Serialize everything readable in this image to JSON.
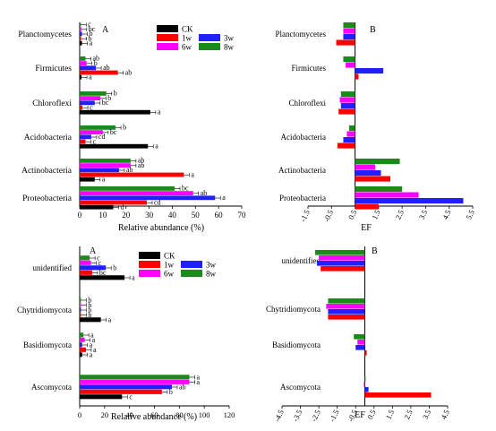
{
  "colors": {
    "CK": "#000000",
    "1w": "#ff0000",
    "3w": "#1f1fff",
    "6w": "#ff00ff",
    "8w": "#1a8a1a"
  },
  "chart_data": [
    {
      "panel": "A",
      "type": "bar",
      "orientation": "horizontal",
      "categories": [
        "Planctomycetes",
        "Firmicutes",
        "Chloroflexi",
        "Acidobacteria",
        "Actinobacteria",
        "Proteobacteria"
      ],
      "series": [
        {
          "name": "CK",
          "values": [
            1.0,
            0.8,
            30.5,
            29.5,
            6.5,
            14.5
          ],
          "labels": [
            "a",
            "a",
            "a",
            "a",
            "a",
            "d"
          ]
        },
        {
          "name": "1w",
          "values": [
            0.6,
            16.5,
            1.2,
            2.5,
            45.0,
            29.0
          ],
          "labels": [
            "b",
            "ab",
            "c",
            "c",
            "a",
            "cd"
          ]
        },
        {
          "name": "3w",
          "values": [
            1.0,
            7.0,
            6.5,
            5.0,
            17.0,
            58.5
          ],
          "labels": [
            "b",
            "ab",
            "bc",
            "cd",
            "ab",
            "a"
          ]
        },
        {
          "name": "6w",
          "values": [
            0.7,
            3.0,
            9.0,
            10.0,
            22.0,
            49.0
          ],
          "labels": [
            "bc",
            "b",
            "b",
            "bc",
            "ab",
            "ab"
          ]
        },
        {
          "name": "8w",
          "values": [
            0.5,
            2.5,
            11.5,
            15.5,
            22.0,
            41.0
          ],
          "labels": [
            "c",
            "ab",
            "b",
            "b",
            "ab",
            "bc"
          ]
        }
      ],
      "xlabel": "Relative abundance (%)",
      "xlim": [
        0,
        70
      ],
      "xticks": [
        "0",
        "10",
        "20",
        "30",
        "40",
        "50",
        "60",
        "70"
      ]
    },
    {
      "panel": "B",
      "type": "bar",
      "orientation": "horizontal",
      "categories": [
        "Planctomycetes",
        "Firmicutes",
        "Chloroflexi",
        "Acidobacteria",
        "Actinobacteria",
        "Proteobacteria"
      ],
      "series": [
        {
          "name": "1w",
          "values": [
            -0.8,
            0.15,
            -0.7,
            -0.75,
            1.5,
            1.0
          ]
        },
        {
          "name": "3w",
          "values": [
            -0.5,
            1.2,
            -0.6,
            -0.5,
            1.1,
            4.6
          ]
        },
        {
          "name": "6w",
          "values": [
            -0.5,
            -0.4,
            -0.65,
            -0.35,
            0.85,
            2.7
          ]
        },
        {
          "name": "8w",
          "values": [
            -0.5,
            -0.5,
            -0.6,
            -0.25,
            1.9,
            2.0
          ]
        }
      ],
      "xlabel": "EF",
      "xlim": [
        -1.5,
        5.5
      ],
      "xticks": [
        "-1.5",
        "-0.5",
        "0.5",
        "1.5",
        "2.5",
        "3.5",
        "4.5",
        "5.5"
      ]
    },
    {
      "panel": "A",
      "type": "bar",
      "orientation": "horizontal",
      "categories": [
        "unidentified",
        "Chytridiomycota",
        "Basidiomycota",
        "Ascomycota"
      ],
      "series": [
        {
          "name": "CK",
          "values": [
            36,
            17,
            2,
            34
          ],
          "labels": [
            "a",
            "a",
            "a",
            "c"
          ]
        },
        {
          "name": "1w",
          "values": [
            10,
            1,
            5,
            66
          ],
          "labels": [
            "bc",
            "b",
            "a",
            "b"
          ]
        },
        {
          "name": "3w",
          "values": [
            21,
            1,
            2,
            74
          ],
          "labels": [
            "b",
            "b",
            "a",
            "ab"
          ]
        },
        {
          "name": "6w",
          "values": [
            9,
            1,
            4,
            88
          ],
          "labels": [
            "c",
            "b",
            "a",
            "a"
          ]
        },
        {
          "name": "8w",
          "values": [
            8,
            1,
            3,
            88
          ],
          "labels": [
            "c",
            "b",
            "a",
            "a"
          ]
        }
      ],
      "xlabel": "Relative abundance (%)",
      "xlim": [
        0,
        120
      ],
      "xticks": [
        "0",
        "20",
        "40",
        "60",
        "80",
        "100",
        "120"
      ]
    },
    {
      "panel": "B",
      "type": "bar",
      "orientation": "horizontal",
      "categories": [
        "unidentified",
        "Chytridiomycota",
        "Basidiomycota",
        "Ascomycota"
      ],
      "series": [
        {
          "name": "1w",
          "values": [
            -2.4,
            -2.0,
            0.1,
            3.6
          ]
        },
        {
          "name": "3w",
          "values": [
            -2.6,
            -2.0,
            -0.5,
            0.2
          ]
        },
        {
          "name": "6w",
          "values": [
            -2.5,
            -2.1,
            -0.4,
            -0.05
          ]
        },
        {
          "name": "8w",
          "values": [
            -2.7,
            -2.0,
            -0.6,
            0.0
          ]
        }
      ],
      "xlabel": "EF",
      "xlim": [
        -4.5,
        4.5
      ],
      "xticks": [
        "-4.5",
        "-3.5",
        "-2.5",
        "-1.5",
        "-0.5",
        "0.5",
        "1.5",
        "2.5",
        "3.5",
        "4.5"
      ]
    }
  ]
}
